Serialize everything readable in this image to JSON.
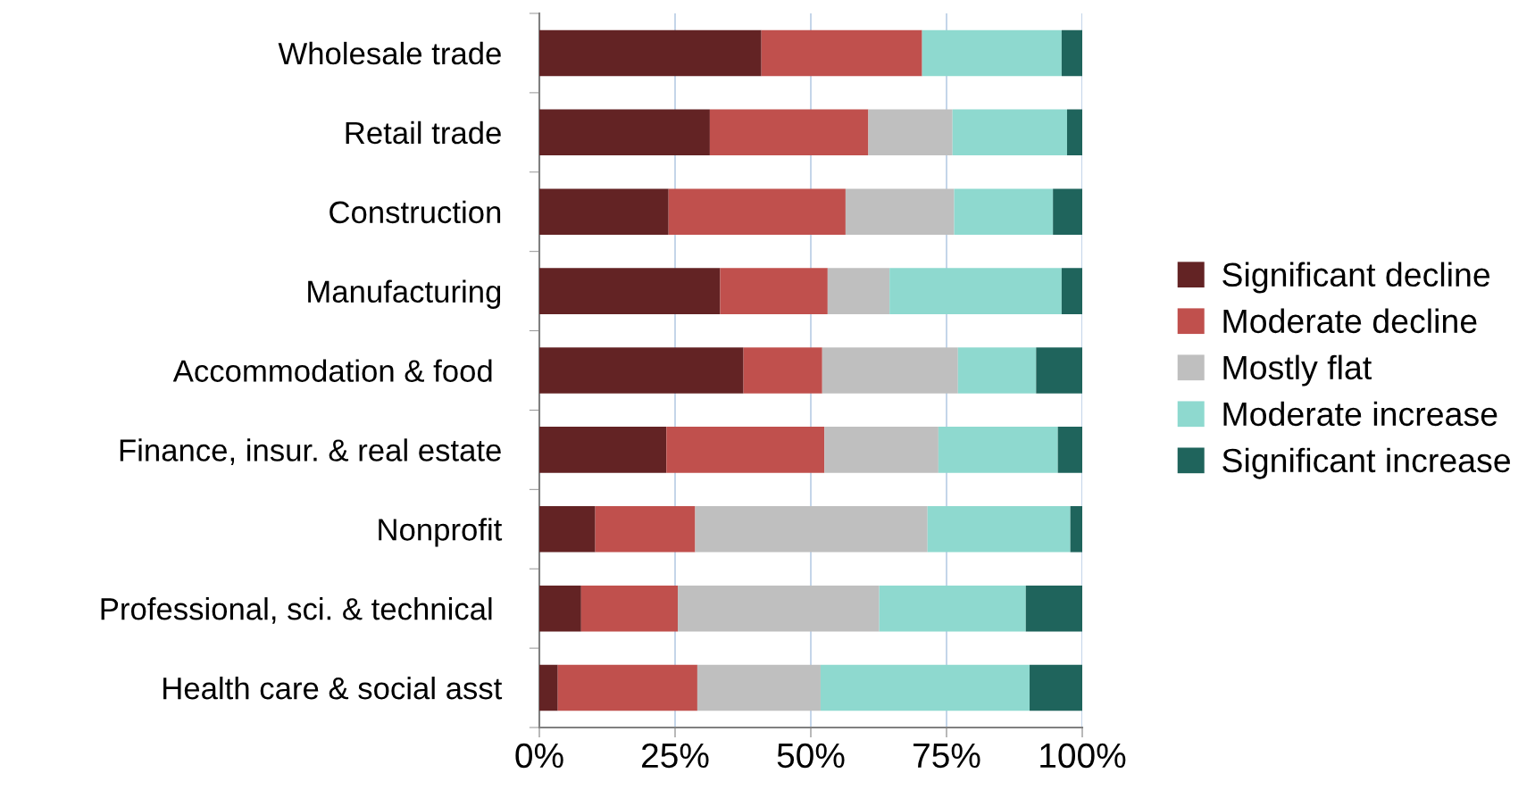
{
  "chart_data": {
    "type": "bar",
    "orientation": "horizontal",
    "stacked": true,
    "categories": [
      "Wholesale trade",
      "Retail trade",
      "Construction",
      "Manufacturing",
      "Accommodation & food ",
      "Finance, insur. & real estate",
      "Nonprofit",
      "Professional, sci. & technical ",
      "Health care & social asst"
    ],
    "series": [
      {
        "name": "Significant decline",
        "color": "#632324",
        "values": [
          40.9,
          31.4,
          23.8,
          33.3,
          37.6,
          23.4,
          10.3,
          7.7,
          3.4
        ]
      },
      {
        "name": "Moderate decline",
        "color": "#c0504d",
        "values": [
          29.6,
          29.2,
          32.6,
          19.8,
          14.5,
          29.1,
          18.4,
          17.8,
          25.7
        ]
      },
      {
        "name": "Mostly flat",
        "color": "#bfbfbf",
        "values": [
          0,
          15.5,
          20.0,
          11.4,
          25.0,
          21.0,
          42.8,
          37.1,
          22.7
        ]
      },
      {
        "name": "Moderate increase",
        "color": "#8ed9cf",
        "values": [
          25.7,
          21.1,
          18.2,
          31.7,
          14.4,
          22.0,
          26.3,
          27.0,
          38.5
        ]
      },
      {
        "name": "Significant increase",
        "color": "#1f645c",
        "values": [
          3.8,
          2.8,
          5.4,
          3.8,
          8.5,
          4.5,
          2.2,
          10.4,
          9.7
        ]
      }
    ],
    "xlim": [
      0,
      100
    ],
    "xticks": [
      {
        "value": 0,
        "label": "0%"
      },
      {
        "value": 25,
        "label": "25%"
      },
      {
        "value": 50,
        "label": "50%"
      },
      {
        "value": 75,
        "label": "75%"
      },
      {
        "value": 100,
        "label": "100%"
      }
    ],
    "grid": "x",
    "legend": "right"
  }
}
